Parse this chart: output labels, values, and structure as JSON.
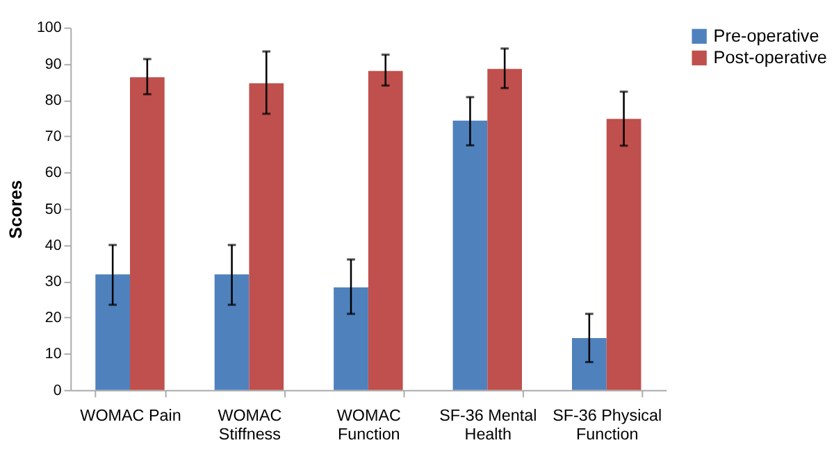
{
  "chart_data": {
    "type": "bar",
    "ylabel": "Scores",
    "categories": [
      "WOMAC Pain",
      "WOMAC Stiffness",
      "WOMAC Function",
      "SF-36 Mental Health",
      "SF-36 Physical Function"
    ],
    "series": [
      {
        "name": "Pre-operative",
        "color": "#4f81bd",
        "values": [
          31.9,
          31.9,
          28.3,
          74.3,
          14.3
        ],
        "errors": [
          [
            23.5,
            40
          ],
          [
            23.5,
            40
          ],
          [
            21,
            36
          ],
          [
            67.5,
            80.8
          ],
          [
            7.7,
            21
          ]
        ]
      },
      {
        "name": "Post-operative",
        "color": "#c0504d",
        "values": [
          86.3,
          84.6,
          88,
          88.6,
          74.8
        ],
        "errors": [
          [
            81.6,
            91.3
          ],
          [
            76.2,
            93.4
          ],
          [
            84,
            92.5
          ],
          [
            83.3,
            94.2
          ],
          [
            67.4,
            82.3
          ]
        ]
      }
    ],
    "ylim": [
      0,
      100
    ],
    "yticks": [
      0,
      10,
      20,
      30,
      40,
      50,
      60,
      70,
      80,
      90,
      100
    ],
    "grid": false,
    "legend": "right"
  }
}
